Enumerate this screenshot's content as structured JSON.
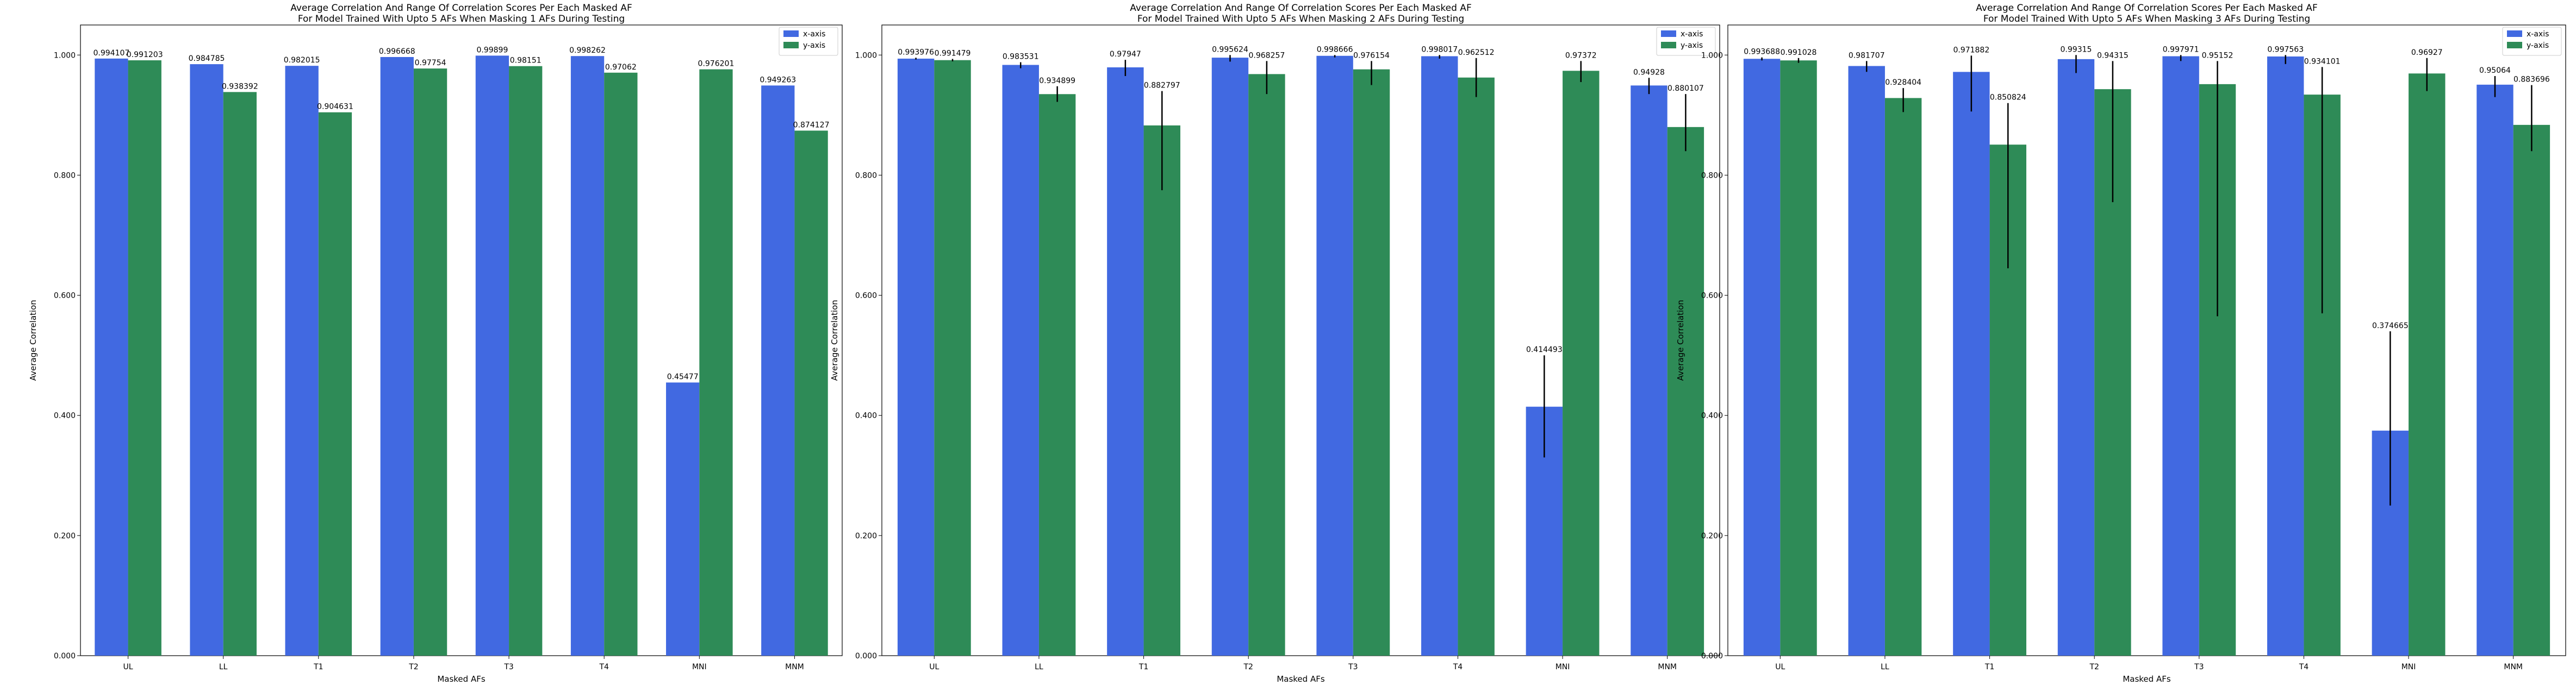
{
  "chart_data": [
    {
      "type": "bar",
      "title_line1": "Average Correlation And Range Of Correlation Scores Per Each Masked AF",
      "title_line2": "For Model Trained With Upto 5 AFs When Masking 1 AFs During Testing",
      "xlabel": "Masked AFs",
      "ylabel": "Average Correlation",
      "ylim": [
        0,
        1.05
      ],
      "yticks": [
        "0.000",
        "0.200",
        "0.400",
        "0.600",
        "0.800",
        "1.000"
      ],
      "legend_position": "top-right",
      "categories": [
        "UL",
        "LL",
        "T1",
        "T2",
        "T3",
        "T4",
        "MNI",
        "MNM"
      ],
      "series": [
        {
          "name": "x-axis",
          "color": "#4169e1",
          "values": [
            0.994107,
            0.984785,
            0.982015,
            0.996668,
            0.99899,
            0.998262,
            0.45477,
            0.949263
          ],
          "labels": [
            "0.994107",
            "0.984785",
            "0.982015",
            "0.996668",
            "0.99899",
            "0.998262",
            "0.45477",
            "0.949263"
          ],
          "err_low": [
            0.994107,
            0.984785,
            0.982015,
            0.996668,
            0.99899,
            0.998262,
            0.45477,
            0.949263
          ],
          "err_high": [
            0.994107,
            0.984785,
            0.982015,
            0.996668,
            0.99899,
            0.998262,
            0.45477,
            0.949263
          ]
        },
        {
          "name": "y-axis",
          "color": "#2e8b57",
          "values": [
            0.991203,
            0.938392,
            0.904631,
            0.97754,
            0.98151,
            0.97062,
            0.976201,
            0.874127
          ],
          "labels": [
            "0.991203",
            "0.938392",
            "0.904631",
            "0.97754",
            "0.98151",
            "0.97062",
            "0.976201",
            "0.874127"
          ],
          "err_low": [
            0.991203,
            0.938392,
            0.904631,
            0.97754,
            0.98151,
            0.97062,
            0.976201,
            0.874127
          ],
          "err_high": [
            0.991203,
            0.938392,
            0.904631,
            0.97754,
            0.98151,
            0.97062,
            0.976201,
            0.874127
          ]
        }
      ]
    },
    {
      "type": "bar",
      "title_line1": "Average Correlation And Range Of Correlation Scores Per Each Masked AF",
      "title_line2": "For Model Trained With Upto 5 AFs When Masking 2 AFs During Testing",
      "xlabel": "Masked AFs",
      "ylabel": "Average Correlation",
      "ylim": [
        0,
        1.05
      ],
      "yticks": [
        "0.000",
        "0.200",
        "0.400",
        "0.600",
        "0.800",
        "1.000"
      ],
      "legend_position": "top-right",
      "categories": [
        "UL",
        "LL",
        "T1",
        "T2",
        "T3",
        "T4",
        "MNI",
        "MNM"
      ],
      "series": [
        {
          "name": "x-axis",
          "color": "#4169e1",
          "values": [
            0.993976,
            0.983531,
            0.97947,
            0.995624,
            0.998666,
            0.998017,
            0.414493,
            0.94928
          ],
          "labels": [
            "0.993976",
            "0.983531",
            "0.97947",
            "0.995624",
            "0.998666",
            "0.998017",
            "0.414493",
            "0.94928"
          ],
          "err_low": [
            0.9925,
            0.978,
            0.965,
            0.989,
            0.996,
            0.994,
            0.33,
            0.935
          ],
          "err_high": [
            0.9955,
            0.988,
            0.992,
            1.0,
            1.0,
            1.0,
            0.5,
            0.962
          ]
        },
        {
          "name": "y-axis",
          "color": "#2e8b57",
          "values": [
            0.991479,
            0.934899,
            0.882797,
            0.968257,
            0.976154,
            0.962512,
            0.97372,
            0.880107
          ],
          "labels": [
            "0.991479",
            "0.934899",
            "0.882797",
            "0.968257",
            "0.976154",
            "0.962512",
            "0.97372",
            "0.880107"
          ],
          "err_low": [
            0.9895,
            0.922,
            0.775,
            0.935,
            0.95,
            0.93,
            0.955,
            0.84
          ],
          "err_high": [
            0.9935,
            0.948,
            0.94,
            0.99,
            0.99,
            0.995,
            0.99,
            0.935
          ]
        }
      ]
    },
    {
      "type": "bar",
      "title_line1": "Average Correlation And Range Of Correlation Scores Per Each Masked AF",
      "title_line2": "For Model Trained With Upto 5 AFs When Masking 3 AFs During Testing",
      "xlabel": "Masked AFs",
      "ylabel": "Average Correlation",
      "ylim": [
        0,
        1.05
      ],
      "yticks": [
        "0.000",
        "0.200",
        "0.400",
        "0.600",
        "0.800",
        "1.000"
      ],
      "legend_position": "top-right",
      "categories": [
        "UL",
        "LL",
        "T1",
        "T2",
        "T3",
        "T4",
        "MNI",
        "MNM"
      ],
      "series": [
        {
          "name": "x-axis",
          "color": "#4169e1",
          "values": [
            0.993688,
            0.981707,
            0.971882,
            0.99315,
            0.997971,
            0.997563,
            0.374665,
            0.95064
          ],
          "labels": [
            "0.993688",
            "0.981707",
            "0.971882",
            "0.99315",
            "0.997971",
            "0.997563",
            "0.374665",
            "0.95064"
          ],
          "err_low": [
            0.991,
            0.972,
            0.906,
            0.97,
            0.99,
            0.985,
            0.25,
            0.93
          ],
          "err_high": [
            0.996,
            0.99,
            0.999,
            1.0,
            1.0,
            1.0,
            0.54,
            0.965
          ]
        },
        {
          "name": "y-axis",
          "color": "#2e8b57",
          "values": [
            0.991028,
            0.928404,
            0.850824,
            0.94315,
            0.95152,
            0.934101,
            0.96927,
            0.883696
          ],
          "labels": [
            "0.991028",
            "0.928404",
            "0.850824",
            "0.94315",
            "0.95152",
            "0.934101",
            "0.96927",
            "0.883696"
          ],
          "err_low": [
            0.987,
            0.905,
            0.645,
            0.755,
            0.565,
            0.57,
            0.94,
            0.84
          ],
          "err_high": [
            0.995,
            0.945,
            0.92,
            0.99,
            0.99,
            0.98,
            0.995,
            0.95
          ]
        }
      ]
    }
  ]
}
